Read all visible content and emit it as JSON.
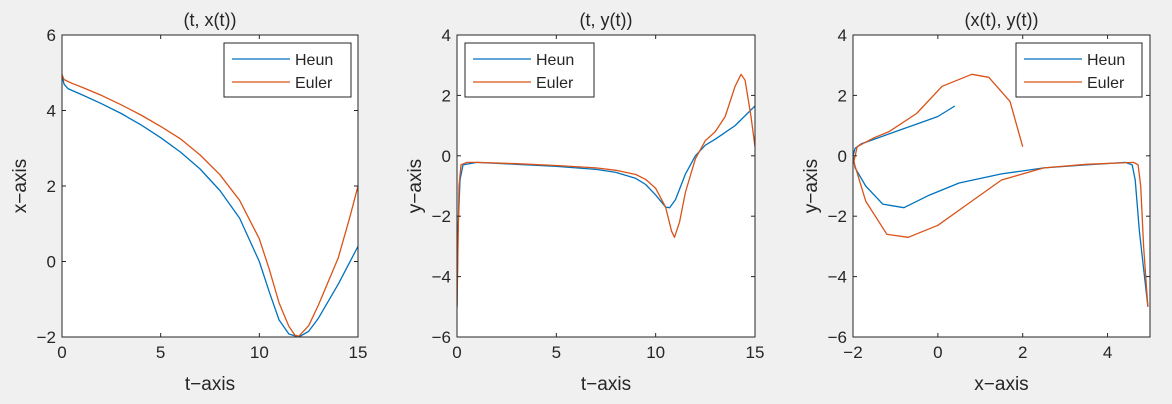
{
  "chart_data": [
    {
      "type": "line",
      "title": "(t, x(t))",
      "xlabel": "t−axis",
      "ylabel": "x−axis",
      "xlim": [
        0,
        15
      ],
      "ylim": [
        -2,
        6
      ],
      "xticks": [
        0,
        5,
        10,
        15
      ],
      "yticks": [
        -2,
        0,
        2,
        4,
        6
      ],
      "xtick_labels": [
        "0",
        "5",
        "10",
        "15"
      ],
      "ytick_labels": [
        "−2",
        "0",
        "2",
        "4",
        "6"
      ],
      "grid": false,
      "legend": "top-right",
      "series": [
        {
          "name": "Heun",
          "color": "#0072BD",
          "points": [
            [
              0,
              4.95
            ],
            [
              0.1,
              4.7
            ],
            [
              0.3,
              4.58
            ],
            [
              1,
              4.42
            ],
            [
              2,
              4.18
            ],
            [
              3,
              3.92
            ],
            [
              4,
              3.62
            ],
            [
              5,
              3.28
            ],
            [
              6,
              2.9
            ],
            [
              7,
              2.45
            ],
            [
              8,
              1.88
            ],
            [
              9,
              1.15
            ],
            [
              10,
              0.0
            ],
            [
              10.5,
              -0.8
            ],
            [
              11,
              -1.55
            ],
            [
              11.5,
              -1.92
            ],
            [
              12,
              -2.0
            ],
            [
              12.5,
              -1.85
            ],
            [
              13,
              -1.5
            ],
            [
              14,
              -0.6
            ],
            [
              15,
              0.4
            ]
          ]
        },
        {
          "name": "Euler",
          "color": "#D95319",
          "points": [
            [
              0,
              4.95
            ],
            [
              0.1,
              4.82
            ],
            [
              0.5,
              4.72
            ],
            [
              1,
              4.62
            ],
            [
              2,
              4.4
            ],
            [
              3,
              4.15
            ],
            [
              4,
              3.88
            ],
            [
              5,
              3.58
            ],
            [
              6,
              3.25
            ],
            [
              7,
              2.82
            ],
            [
              8,
              2.3
            ],
            [
              9,
              1.62
            ],
            [
              10,
              0.6
            ],
            [
              10.5,
              -0.2
            ],
            [
              11,
              -1.1
            ],
            [
              11.5,
              -1.72
            ],
            [
              11.8,
              -1.95
            ],
            [
              12,
              -1.98
            ],
            [
              12.5,
              -1.7
            ],
            [
              13,
              -1.15
            ],
            [
              14,
              0.1
            ],
            [
              14.6,
              1.2
            ],
            [
              15,
              2.0
            ]
          ]
        }
      ]
    },
    {
      "type": "line",
      "title": "(t, y(t))",
      "xlabel": "t−axis",
      "ylabel": "y−axis",
      "xlim": [
        0,
        15
      ],
      "ylim": [
        -6,
        4
      ],
      "xticks": [
        0,
        5,
        10,
        15
      ],
      "yticks": [
        -6,
        -4,
        -2,
        0,
        2,
        4
      ],
      "xtick_labels": [
        "0",
        "5",
        "10",
        "15"
      ],
      "ytick_labels": [
        "−6",
        "−4",
        "−2",
        "0",
        "2",
        "4"
      ],
      "grid": false,
      "legend": "top-left",
      "series": [
        {
          "name": "Heun",
          "color": "#0072BD",
          "points": [
            [
              0,
              -5.0
            ],
            [
              0.05,
              -2.5
            ],
            [
              0.15,
              -0.8
            ],
            [
              0.3,
              -0.3
            ],
            [
              1,
              -0.22
            ],
            [
              3,
              -0.28
            ],
            [
              5,
              -0.35
            ],
            [
              7,
              -0.45
            ],
            [
              8,
              -0.55
            ],
            [
              9,
              -0.75
            ],
            [
              9.5,
              -0.95
            ],
            [
              10,
              -1.3
            ],
            [
              10.5,
              -1.7
            ],
            [
              10.7,
              -1.72
            ],
            [
              11,
              -1.45
            ],
            [
              11.5,
              -0.6
            ],
            [
              12,
              0.0
            ],
            [
              12.5,
              0.35
            ],
            [
              13,
              0.55
            ],
            [
              14,
              1.0
            ],
            [
              15,
              1.65
            ]
          ]
        },
        {
          "name": "Euler",
          "color": "#D95319",
          "points": [
            [
              0,
              -5.0
            ],
            [
              0.05,
              -3.0
            ],
            [
              0.1,
              -1.0
            ],
            [
              0.2,
              -0.3
            ],
            [
              0.5,
              -0.22
            ],
            [
              1,
              -0.22
            ],
            [
              3,
              -0.26
            ],
            [
              5,
              -0.32
            ],
            [
              7,
              -0.4
            ],
            [
              8,
              -0.48
            ],
            [
              9,
              -0.62
            ],
            [
              9.5,
              -0.78
            ],
            [
              10,
              -1.08
            ],
            [
              10.5,
              -1.7
            ],
            [
              10.8,
              -2.5
            ],
            [
              10.95,
              -2.7
            ],
            [
              11.2,
              -2.2
            ],
            [
              11.5,
              -1.2
            ],
            [
              12,
              -0.1
            ],
            [
              12.5,
              0.5
            ],
            [
              13,
              0.8
            ],
            [
              13.5,
              1.3
            ],
            [
              14,
              2.3
            ],
            [
              14.3,
              2.7
            ],
            [
              14.5,
              2.5
            ],
            [
              14.8,
              1.3
            ],
            [
              15,
              0.3
            ]
          ]
        }
      ]
    },
    {
      "type": "line",
      "title": "(x(t), y(t))",
      "xlabel": "x−axis",
      "ylabel": "y−axis",
      "xlim": [
        -2,
        5
      ],
      "ylim": [
        -6,
        4
      ],
      "xticks": [
        -2,
        0,
        2,
        4
      ],
      "yticks": [
        -6,
        -4,
        -2,
        0,
        2,
        4
      ],
      "xtick_labels": [
        "−2",
        "0",
        "2",
        "4"
      ],
      "ytick_labels": [
        "−6",
        "−4",
        "−2",
        "0",
        "2",
        "4"
      ],
      "grid": false,
      "legend": "top-right",
      "series": [
        {
          "name": "Heun",
          "color": "#0072BD",
          "points": [
            [
              4.95,
              -5.0
            ],
            [
              4.75,
              -2.5
            ],
            [
              4.65,
              -0.8
            ],
            [
              4.58,
              -0.3
            ],
            [
              4.42,
              -0.22
            ],
            [
              3.5,
              -0.3
            ],
            [
              2.5,
              -0.4
            ],
            [
              1.5,
              -0.6
            ],
            [
              0.5,
              -0.9
            ],
            [
              -0.2,
              -1.3
            ],
            [
              -0.8,
              -1.72
            ],
            [
              -1.3,
              -1.6
            ],
            [
              -1.7,
              -1.0
            ],
            [
              -1.95,
              -0.4
            ],
            [
              -2.0,
              0.0
            ],
            [
              -1.95,
              0.25
            ],
            [
              -1.8,
              0.4
            ],
            [
              -1.5,
              0.55
            ],
            [
              -1,
              0.8
            ],
            [
              -0.5,
              1.05
            ],
            [
              0,
              1.3
            ],
            [
              0.4,
              1.65
            ]
          ]
        },
        {
          "name": "Euler",
          "color": "#D95319",
          "points": [
            [
              4.95,
              -5.0
            ],
            [
              4.85,
              -3.0
            ],
            [
              4.78,
              -1.0
            ],
            [
              4.72,
              -0.3
            ],
            [
              4.62,
              -0.22
            ],
            [
              3.5,
              -0.28
            ],
            [
              2.5,
              -0.4
            ],
            [
              1.5,
              -0.8
            ],
            [
              0.8,
              -1.5
            ],
            [
              0,
              -2.3
            ],
            [
              -0.7,
              -2.7
            ],
            [
              -1.2,
              -2.6
            ],
            [
              -1.7,
              -1.5
            ],
            [
              -1.98,
              -0.2
            ],
            [
              -1.9,
              0.3
            ],
            [
              -1.5,
              0.6
            ],
            [
              -1.15,
              0.8
            ],
            [
              -0.5,
              1.4
            ],
            [
              0.1,
              2.3
            ],
            [
              0.8,
              2.7
            ],
            [
              1.2,
              2.6
            ],
            [
              1.7,
              1.8
            ],
            [
              2.0,
              0.3
            ]
          ]
        }
      ]
    }
  ]
}
